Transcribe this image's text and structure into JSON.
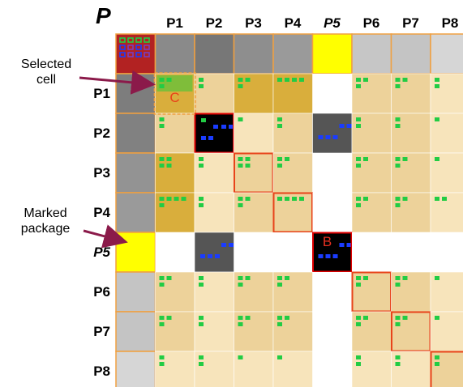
{
  "title": "P",
  "packages": [
    "P1",
    "P2",
    "P3",
    "P4",
    "P5",
    "P6",
    "P7",
    "P8"
  ],
  "marked_package": "P5",
  "callouts": {
    "selected_cell": "Selected\ncell",
    "marked_package": "Marked\npackage"
  },
  "cell_labels": {
    "selected": "C",
    "marked": "B"
  },
  "colors": {
    "low": "#f7e4bb",
    "mid": "#edd29a",
    "high": "#d9ae3c",
    "marked": "#ffff00",
    "self_dark": "#000000",
    "marked_dark": "#555555",
    "corner": "#b22222",
    "dot_green": "#22cc44",
    "dot_blue": "#1a3cff",
    "arrow": "#8b1a4a",
    "highlight": "#e8431a"
  },
  "header_grays": [
    "#8a8a8a",
    "#777777",
    "#8e8e8e",
    "#9a9a9a",
    "#ffff00",
    "#c6c6c6",
    "#c4c4c4",
    "#d6d6d6"
  ],
  "row_grays": [
    "#7d7d7d",
    "#818181",
    "#939393",
    "#9a9a9a",
    "#ffff00",
    "#c4c4c4",
    "#c4c4c4",
    "#d6d6d6"
  ],
  "matrix": [
    [
      "sel",
      "mid",
      "high",
      "high",
      "none",
      "mid",
      "mid",
      "low"
    ],
    [
      "mid",
      "self",
      "low",
      "mid",
      "dark",
      "mid",
      "mid",
      "low"
    ],
    [
      "high",
      "low",
      "selfhl",
      "mid",
      "none",
      "mid",
      "mid",
      "low"
    ],
    [
      "high",
      "low",
      "mid",
      "selfhl",
      "none",
      "mid",
      "mid",
      "low"
    ],
    [
      "none",
      "dark",
      "none",
      "none",
      "selfdark",
      "none",
      "none",
      "none"
    ],
    [
      "mid",
      "low",
      "mid",
      "mid",
      "none",
      "selfhl",
      "mid",
      "low"
    ],
    [
      "mid",
      "low",
      "mid",
      "mid",
      "none",
      "mid",
      "selfhl",
      "low"
    ],
    [
      "low",
      "low",
      "low",
      "low",
      "none",
      "low",
      "low",
      "selfhl"
    ]
  ],
  "dots": [
    [
      [
        2,
        1
      ],
      [
        1,
        1
      ],
      [
        2,
        1
      ],
      [
        4,
        0
      ],
      [
        0,
        0
      ],
      [
        2,
        1
      ],
      [
        2,
        1
      ],
      [
        1,
        1
      ]
    ],
    [
      [
        1,
        1
      ],
      [
        0,
        5
      ],
      [
        1,
        0
      ],
      [
        1,
        1
      ],
      [
        0,
        5
      ],
      [
        1,
        1
      ],
      [
        1,
        1
      ],
      [
        1,
        0
      ]
    ],
    [
      [
        2,
        2
      ],
      [
        1,
        1
      ],
      [
        2,
        2
      ],
      [
        2,
        1
      ],
      [
        0,
        0
      ],
      [
        2,
        1
      ],
      [
        2,
        1
      ],
      [
        1,
        0
      ]
    ],
    [
      [
        4,
        1
      ],
      [
        1,
        1
      ],
      [
        2,
        1
      ],
      [
        4,
        0
      ],
      [
        0,
        0
      ],
      [
        2,
        1
      ],
      [
        2,
        1
      ],
      [
        2,
        0
      ]
    ],
    [
      [
        0,
        0
      ],
      [
        0,
        5
      ],
      [
        0,
        0
      ],
      [
        0,
        0
      ],
      [
        0,
        5
      ],
      [
        0,
        0
      ],
      [
        0,
        0
      ],
      [
        0,
        0
      ]
    ],
    [
      [
        2,
        1
      ],
      [
        1,
        1
      ],
      [
        2,
        1
      ],
      [
        2,
        1
      ],
      [
        0,
        0
      ],
      [
        2,
        1
      ],
      [
        2,
        1
      ],
      [
        1,
        0
      ]
    ],
    [
      [
        2,
        1
      ],
      [
        1,
        1
      ],
      [
        2,
        1
      ],
      [
        2,
        1
      ],
      [
        0,
        0
      ],
      [
        2,
        1
      ],
      [
        2,
        1
      ],
      [
        1,
        0
      ]
    ],
    [
      [
        1,
        1
      ],
      [
        1,
        1
      ],
      [
        1,
        0
      ],
      [
        1,
        0
      ],
      [
        0,
        0
      ],
      [
        1,
        1
      ],
      [
        1,
        1
      ],
      [
        1,
        1
      ]
    ]
  ]
}
